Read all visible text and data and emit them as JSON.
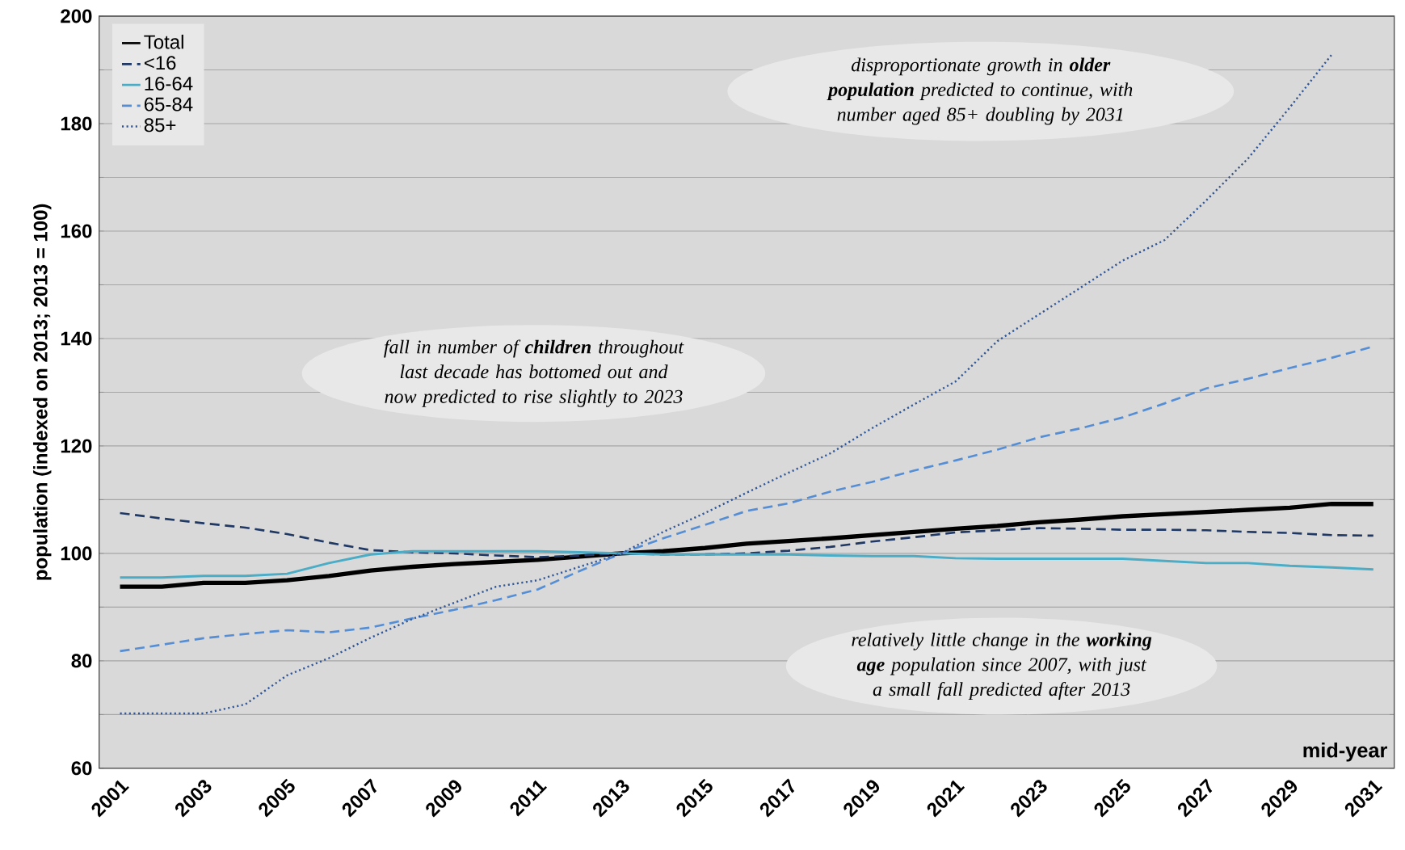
{
  "chart_data": {
    "type": "line",
    "xlabel": "mid-year",
    "ylabel": "population (indexed on 2013;  2013  = 100)",
    "categories": [
      "2001",
      null,
      "2003",
      null,
      "2005",
      null,
      "2007",
      null,
      "2009",
      null,
      "2011",
      null,
      "2013",
      null,
      "2015",
      null,
      "2017",
      null,
      "2019",
      null,
      "2021",
      null,
      "2023",
      null,
      "2025",
      null,
      "2027",
      null,
      "2029",
      null,
      "2031"
    ],
    "series": [
      {
        "name": "Total",
        "color": "#000000",
        "line_style": "solid",
        "values": [
          93.8,
          93.8,
          94.5,
          94.5,
          95,
          95.8,
          96.8,
          97.5,
          98,
          98.4,
          98.8,
          99.4,
          100,
          100.4,
          101,
          101.8,
          102.3,
          102.8,
          103.4,
          104,
          104.6,
          105.1,
          105.8,
          106.3,
          106.9,
          107.3,
          107.7,
          108.1,
          108.5,
          109.2,
          109.2
        ]
      },
      {
        "name": "<16",
        "color": "#1f3864",
        "line_style": "dashed",
        "values": [
          107.5,
          106.5,
          105.6,
          104.8,
          103.6,
          102,
          100.6,
          100.2,
          100,
          99.6,
          99.3,
          99.6,
          100,
          99.8,
          99.8,
          100,
          100.5,
          101.2,
          102.2,
          103,
          103.9,
          104.3,
          104.7,
          104.6,
          104.4,
          104.4,
          104.3,
          104,
          103.8,
          103.4,
          103.3
        ]
      },
      {
        "name": "16-64",
        "color": "#4bacc6",
        "line_style": "solid",
        "values": [
          95.5,
          95.5,
          95.8,
          95.8,
          96.2,
          98.2,
          99.8,
          100.4,
          100.4,
          100.4,
          100.4,
          100.2,
          100,
          99.8,
          99.8,
          99.8,
          99.8,
          99.6,
          99.5,
          99.5,
          99.1,
          99,
          99,
          99,
          99,
          98.6,
          98.2,
          98.2,
          97.7,
          97.4,
          97
        ]
      },
      {
        "name": "65-84",
        "color": "#558ed5",
        "line_style": "dashed",
        "values": [
          81.8,
          83,
          84.2,
          85,
          85.7,
          85.3,
          86.2,
          87.9,
          89.5,
          91.3,
          93.3,
          96.7,
          100,
          102.8,
          105.3,
          107.9,
          109.3,
          111.5,
          113.3,
          115.4,
          117.3,
          119.3,
          121.6,
          123.3,
          125.3,
          127.9,
          130.7,
          132.5,
          134.5,
          136.4,
          138.5
        ]
      },
      {
        "name": "85+",
        "color": "#2e5597",
        "line_style": "dotted",
        "values": [
          70.2,
          70.2,
          70.2,
          71.9,
          77.3,
          80.5,
          84.3,
          87.8,
          90.8,
          93.8,
          95,
          97.5,
          100,
          104,
          107.5,
          111.3,
          115,
          118.6,
          123.3,
          127.7,
          132,
          139.5,
          144.5,
          149.5,
          154.5,
          158.3,
          165.7,
          173.5,
          183,
          192.8,
          null
        ]
      }
    ],
    "ylim": [
      60,
      200
    ],
    "yticks": [
      60,
      {
        "value": 70,
        "label": null
      },
      80,
      {
        "value": 90,
        "label": null
      },
      100,
      {
        "value": 110,
        "label": null
      },
      120,
      {
        "value": 130,
        "label": null
      },
      140,
      {
        "value": 150,
        "label": null
      },
      160,
      {
        "value": 170,
        "label": null
      },
      180,
      {
        "value": 190,
        "label": null
      },
      200
    ],
    "grid": "y",
    "legend": "top left",
    "marker": "none",
    "annotations": [
      "disproportionate growth in **older population** predicted to continue, with number aged 85+ doubling by 2031",
      "fall in number of **children** throughout last decade has bottomed out and now predicted to rise slightly to 2023",
      "relatively little change in the **working age** population since 2007, with just a small fall predicted after 2013"
    ]
  }
}
